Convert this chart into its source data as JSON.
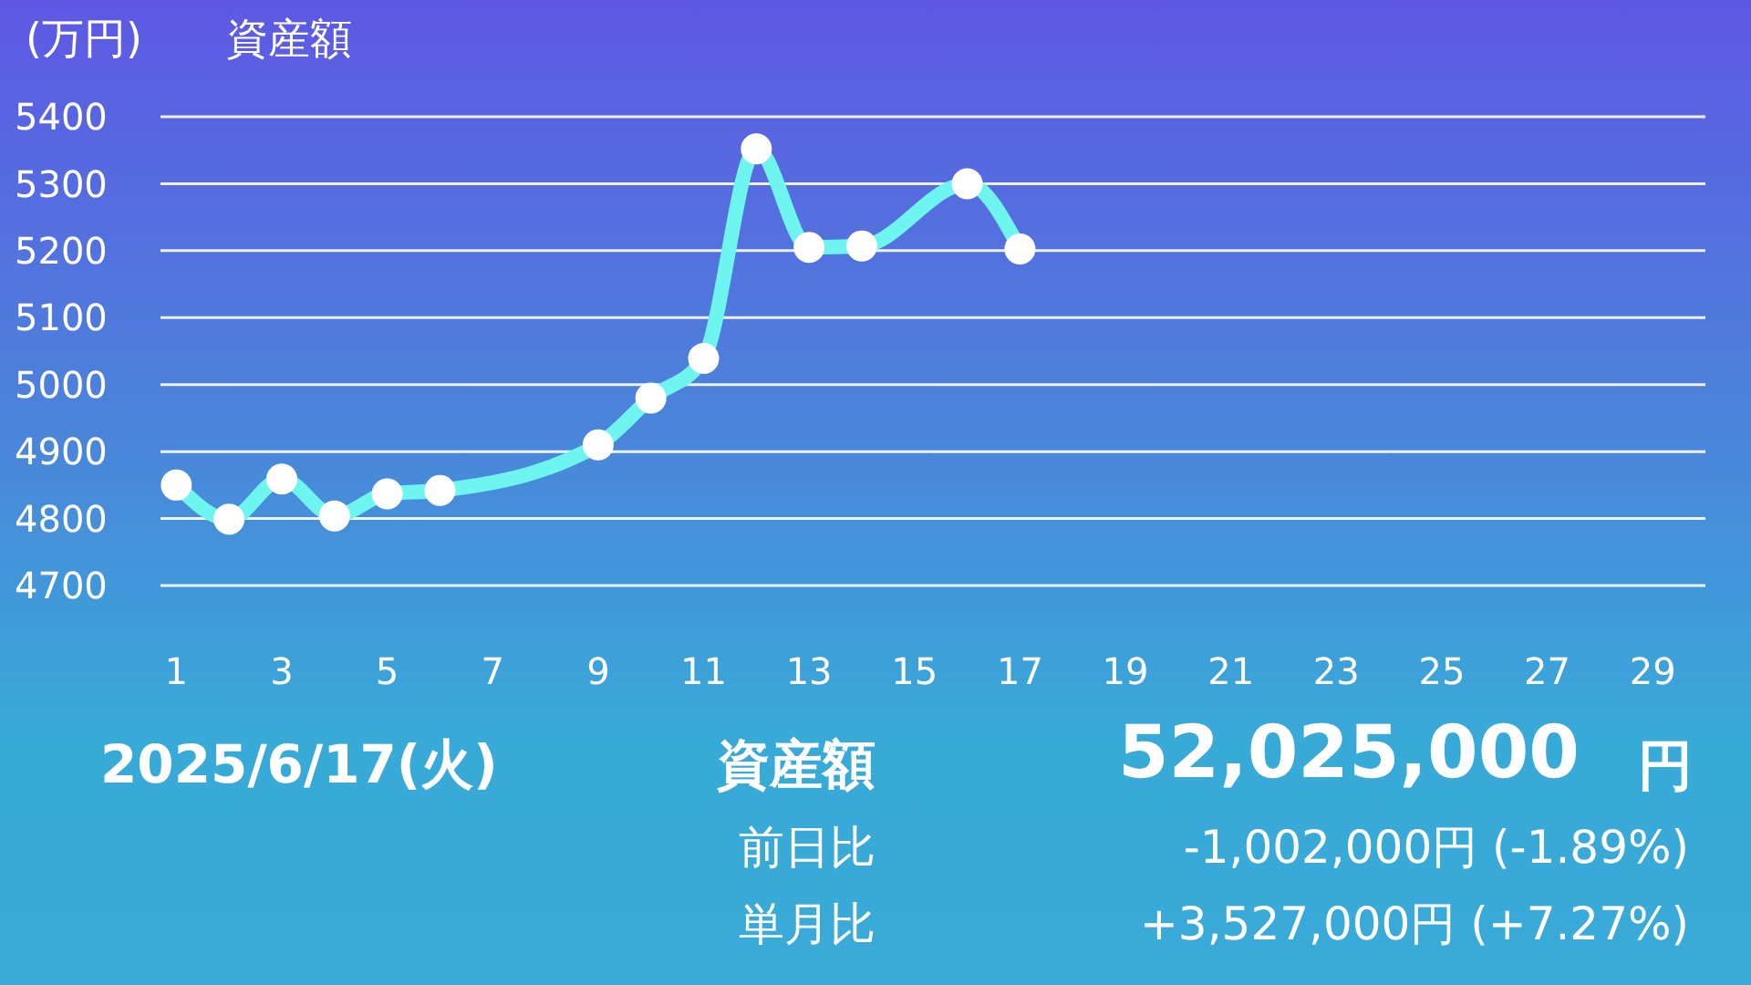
{
  "chart_data": {
    "type": "line",
    "title": "資産額",
    "ylabel": "(万円)",
    "x": [
      1,
      2,
      3,
      4,
      5,
      6,
      9,
      10,
      11,
      12,
      13,
      14,
      16,
      17
    ],
    "series": [
      {
        "color": "#6ff5f0",
        "values": [
          4850,
          4799,
          4859,
          4804,
          4837,
          4842,
          4910,
          4980,
          5039,
          5352,
          5205,
          5207,
          5300,
          5202.5
        ]
      }
    ],
    "xlim": [
      0.7,
      30
    ],
    "xticks": [
      1,
      3,
      5,
      7,
      9,
      11,
      13,
      15,
      17,
      19,
      21,
      23,
      25,
      27,
      29
    ],
    "ylim": [
      4700,
      5400
    ],
    "yticks": [
      4700,
      4800,
      4900,
      5000,
      5100,
      5200,
      5300,
      5400
    ],
    "grid": "y",
    "marker": "circle",
    "line_style": "solid",
    "legend": false,
    "annotations": [
      "2025/6/17(火)",
      "資産額",
      "52,025,000",
      "円",
      "前日比",
      "-1,002,000円 (-1.89%)",
      "単月比",
      "+3,527,000円 (+7.27%)"
    ]
  }
}
